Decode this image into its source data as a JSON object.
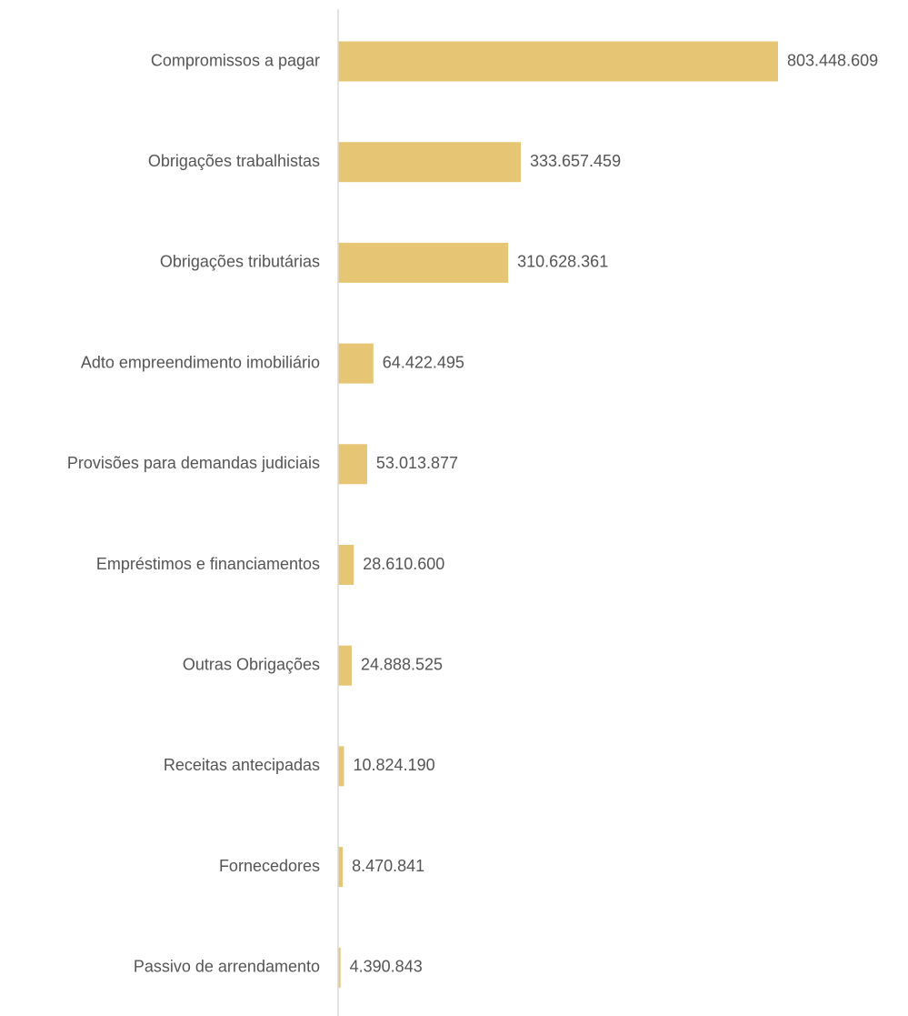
{
  "chart_data": {
    "type": "bar",
    "orientation": "horizontal",
    "categories": [
      "Compromissos a pagar",
      "Obrigações trabalhistas",
      "Obrigações tributárias",
      "Adto empreendimento imobiliário",
      "Provisões para demandas judiciais",
      "Empréstimos e financiamentos",
      "Outras Obrigações",
      "Receitas antecipadas",
      "Fornecedores",
      "Passivo de arrendamento"
    ],
    "values": [
      803448609,
      333657459,
      310628361,
      64422495,
      53013877,
      28610600,
      24888525,
      10824190,
      8470841,
      4390843
    ],
    "value_labels": [
      "803.448.609",
      "333.657.459",
      "310.628.361",
      "64.422.495",
      "53.013.877",
      "28.610.600",
      "24.888.525",
      "10.824.190",
      "8.470.841",
      "4.390.843"
    ],
    "title": "",
    "xlabel": "",
    "ylabel": "",
    "xlim": [
      0,
      803448609
    ],
    "grid": false,
    "legend": "none",
    "colors": {
      "bar": "#E6C675",
      "axis": "#D9D9D9",
      "text": "#595959"
    }
  }
}
